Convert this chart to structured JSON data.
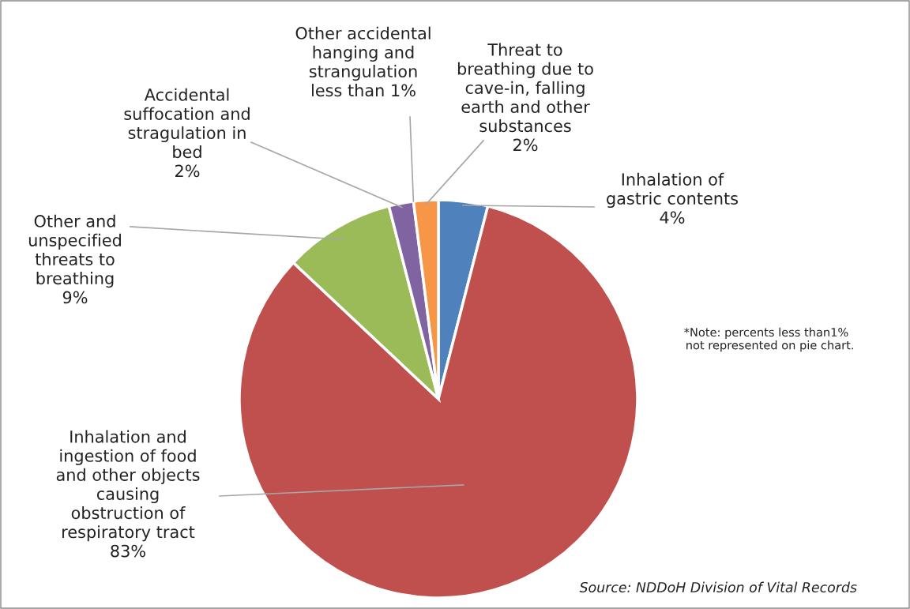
{
  "chart_data": {
    "type": "pie",
    "categories": [
      "Inhalation of\ngastric contents",
      "Inhalation and\ningestion of food\nand other objects\ncausing\nobstruction of\nrespiratory tract",
      "Other and\nunspecified\nthreats to\nbreathing",
      "Accidental\nsuffocation and\nstragulation in\nbed",
      "Other accidental\nhanging and\nstrangulation",
      "Threat to\nbreathing due to\ncave-in, falling\nearth and other\nsubstances"
    ],
    "values": [
      4,
      83,
      9,
      2,
      null,
      2
    ],
    "value_labels": [
      "4%",
      "83%",
      "9%",
      "2%",
      "less than 1%",
      "2%"
    ],
    "colors": [
      "#4f81bd",
      "#c0504d",
      "#9bbb59",
      "#8064a2",
      null,
      "#f79646"
    ],
    "annotations": [
      "*Note: percents less than1%\n  not represented on pie chart.",
      "Source: NDDoH Division of Vital Records"
    ]
  }
}
